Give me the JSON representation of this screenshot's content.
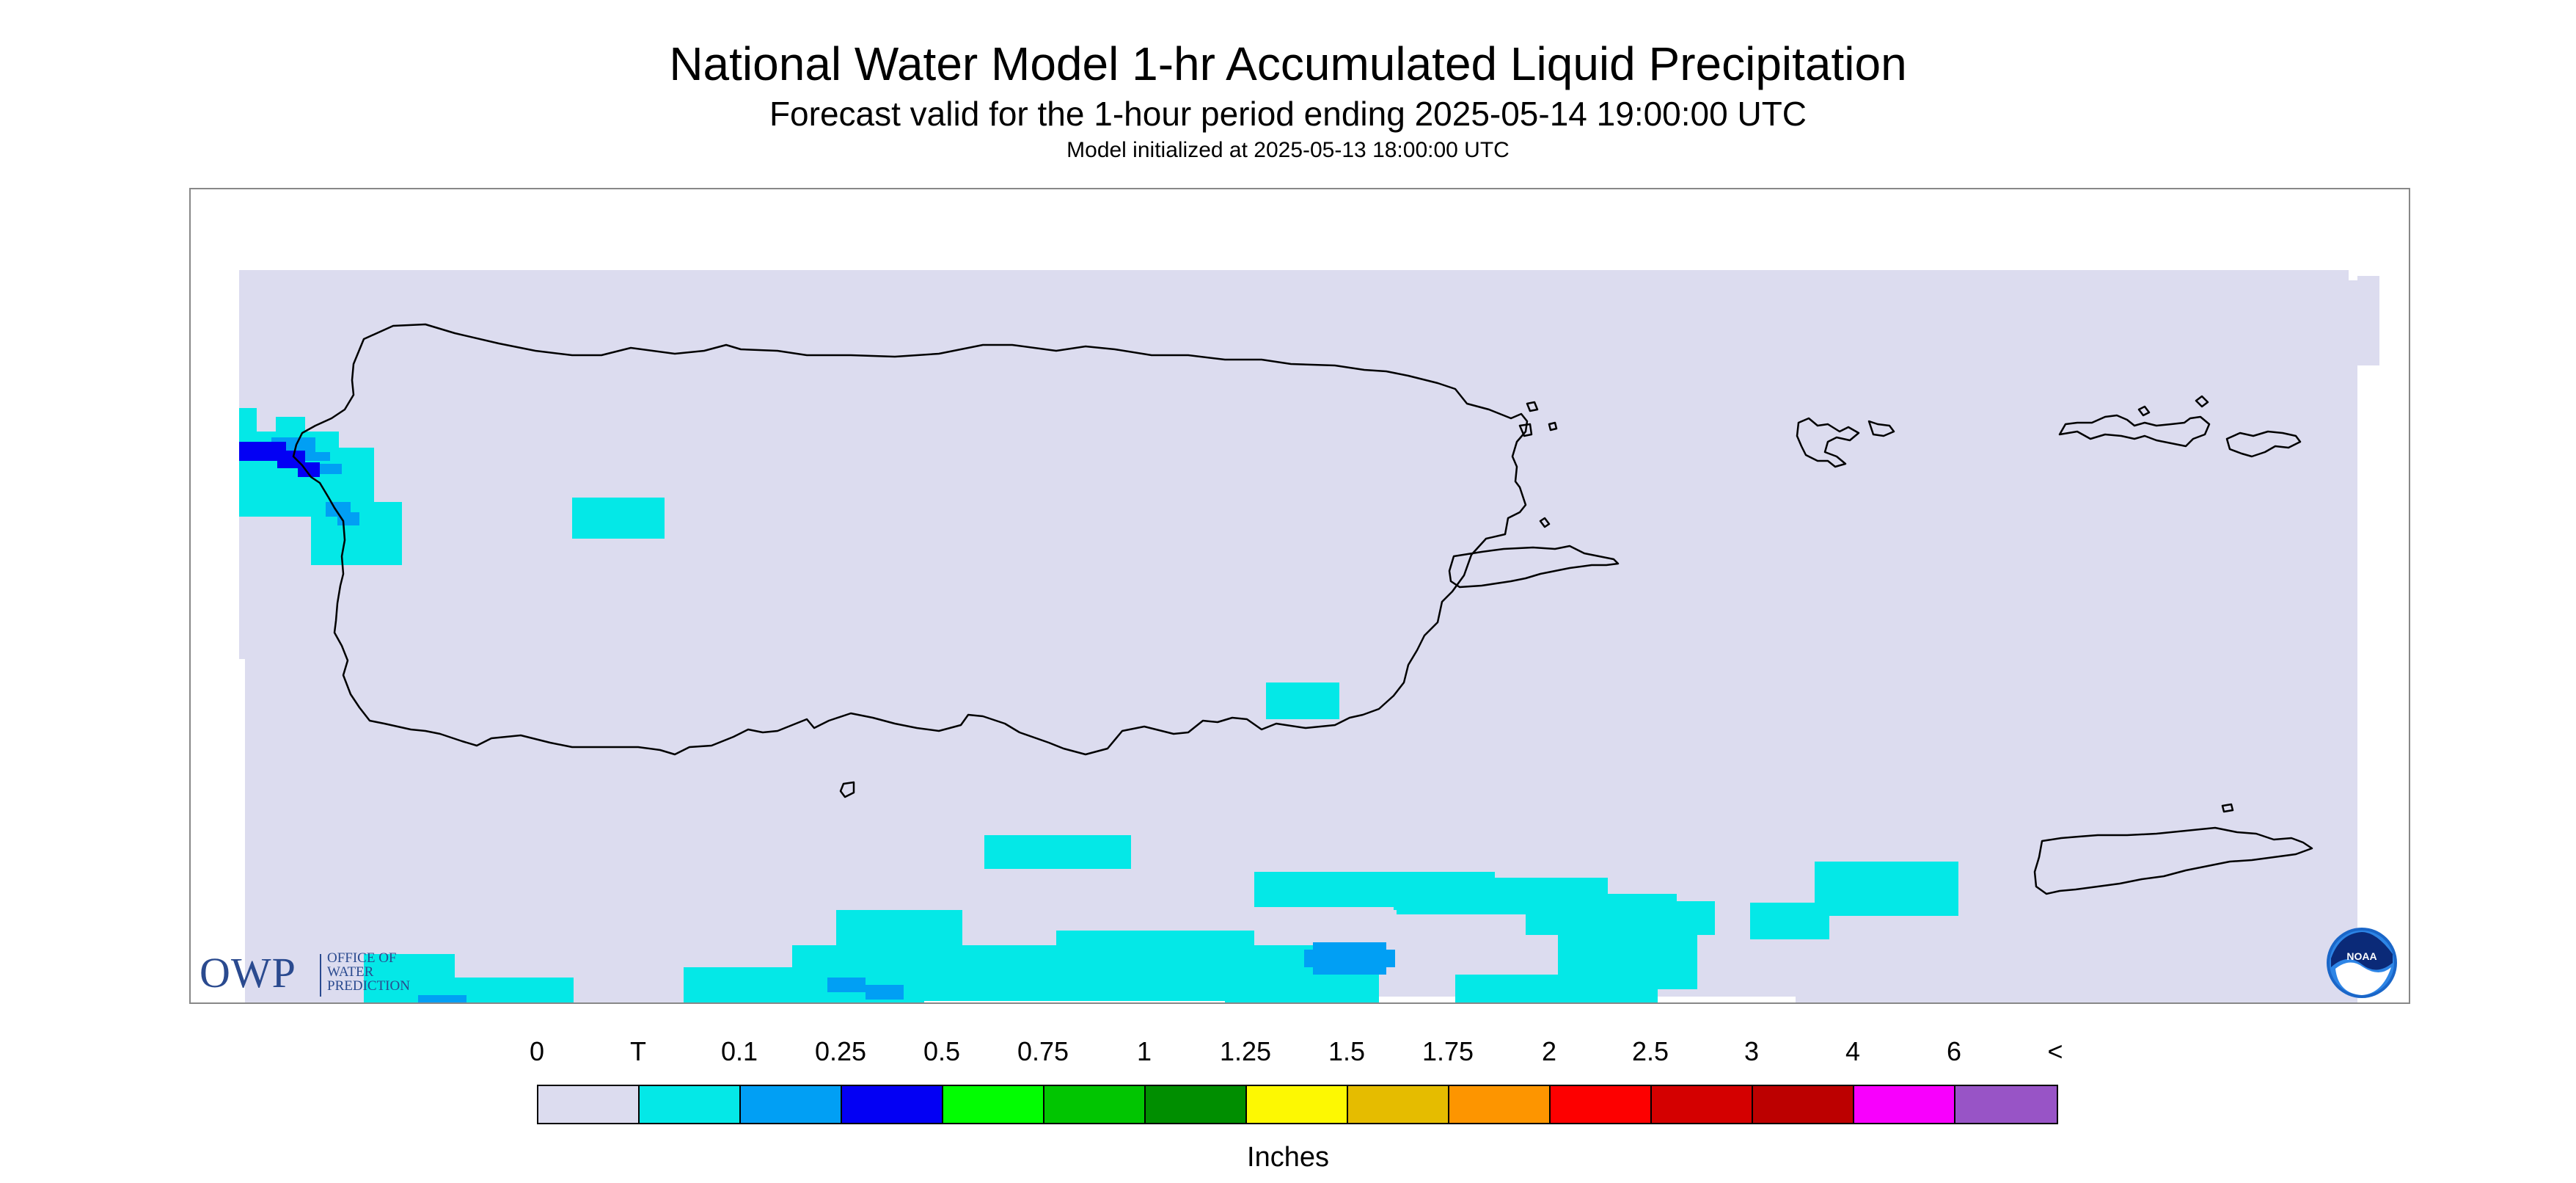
{
  "title": "National Water Model 1-hr Accumulated Liquid Precipitation",
  "subtitle": "Forecast valid for the 1-hour period ending 2025-05-14 19:00:00 UTC",
  "init_line": "Model initialized at 2025-05-13 18:00:00 UTC",
  "colorbar": {
    "labels": [
      "0",
      "T",
      "0.1",
      "0.25",
      "0.5",
      "0.75",
      "1",
      "1.25",
      "1.5",
      "1.75",
      "2",
      "2.5",
      "3",
      "4",
      "6",
      "<"
    ],
    "colors": [
      "#dcdcef",
      "#04e8e7",
      "#019ff4",
      "#0300f4",
      "#02fd02",
      "#01c501",
      "#008e00",
      "#fdf802",
      "#e5bc00",
      "#fd9500",
      "#fd0000",
      "#d40000",
      "#bc0000",
      "#f800fd",
      "#9854c6"
    ],
    "units": "Inches"
  },
  "map": {
    "background_color": "#dcdcef",
    "coastline_color": "#000000"
  },
  "logos": {
    "owp_abbrev": "OWP",
    "owp_line1": "OFFICE OF",
    "owp_line2": "WATER",
    "owp_line3": "PREDICTION",
    "noaa_text": "NOAA"
  }
}
